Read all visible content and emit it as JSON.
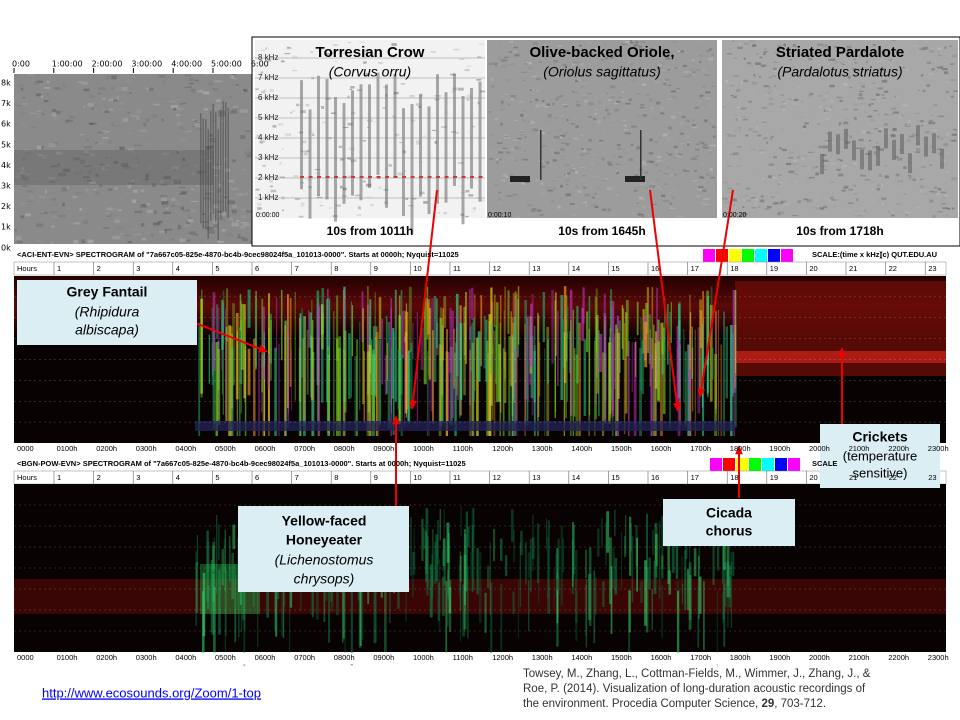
{
  "overview": {
    "time_labels": [
      "0:00",
      "1:00:00",
      "2:00:00",
      "3:00:00",
      "4:00:00",
      "5:00:00",
      "6:00"
    ],
    "freq_labels": [
      "8k",
      "7k",
      "6k",
      "5k",
      "4k",
      "3k",
      "2k",
      "1k",
      "0k"
    ]
  },
  "zoom_panels": [
    {
      "title": "Torresian Crow",
      "species": "(Corvus orru)",
      "caption": "10s from 1011h",
      "start": "0:00:00"
    },
    {
      "title": "Olive-backed Oriole,",
      "species": "(Oriolus sagittatus)",
      "caption": "10s from 1645h",
      "start": "0:00:10"
    },
    {
      "title": "Striated Pardalote",
      "species": "(Pardalotus striatus)",
      "caption": "10s from 1718h",
      "start": "0:00:20"
    }
  ],
  "zoom_freq_labels": [
    "8 kHz",
    "7 kHz",
    "6 kHz",
    "5 kHz",
    "4 kHz",
    "3 kHz",
    "2 kHz",
    "1 kHz"
  ],
  "spectrograms": [
    {
      "header": "<ACI-ENT-EVN> SPECTROGRAM  of \"7a667c05-825e-4870-bc4b-9cec98024f5a_101013-0000\".  Starts at 0000h; Nyquist=11025",
      "scale": "SCALE:(time x kHz)",
      "copyright": "(c) QUT.EDU.AU"
    },
    {
      "header": "<BGN-POW-EVN> SPECTROGRAM  of \"7a667c05-825e-4870-bc4b-9cec98024f5a_101013-0000\".  Starts at 0000h; Nyquist=11025",
      "scale": "SCALE"
    }
  ],
  "hours_label": "Hours",
  "hour_ticks": [
    "1",
    "2",
    "3",
    "4",
    "5",
    "6",
    "7",
    "8",
    "9",
    "10",
    "11",
    "12",
    "13",
    "14",
    "15",
    "16",
    "17",
    "18",
    "19",
    "20",
    "21",
    "22",
    "23"
  ],
  "time_ticks": [
    "0000",
    "0100h",
    "0200h",
    "0300h",
    "0400h",
    "0500h",
    "0600h",
    "0700h",
    "0800h",
    "0900h",
    "1000h",
    "1100h",
    "1200h",
    "1300h",
    "1400h",
    "1500h",
    "1600h",
    "1700h",
    "1800h",
    "1900h",
    "2000h",
    "2100h",
    "2200h",
    "2300h"
  ],
  "callouts": {
    "grey_fantail": {
      "name": "Grey Fantail",
      "latin_1": "(Rhipidura",
      "latin_2": "albiscapa)"
    },
    "honeyeater": {
      "name_1": "Yellow-faced",
      "name_2": "Honeyeater",
      "latin_1": "(Lichenostomus",
      "latin_2": "chrysops)"
    },
    "crickets": {
      "name": "Crickets",
      "note_1": "(temperature",
      "note_2": "sensitive)"
    },
    "cicada": {
      "name_1": "Cicada",
      "name_2": "chorus"
    }
  },
  "link": "http://www.ecosounds.org/Zoom/1-top",
  "citation": {
    "line_1": "Towsey, M., Zhang, L., Cottman-Fields, M., Wimmer, J., Zhang, J., &",
    "line_2": "Roe, P. (2014). Visualization of long-duration acoustic recordings of",
    "line_3": "the environment. Procedia Computer Science, ",
    "volume": "29",
    "pages": ", 703-712."
  }
}
